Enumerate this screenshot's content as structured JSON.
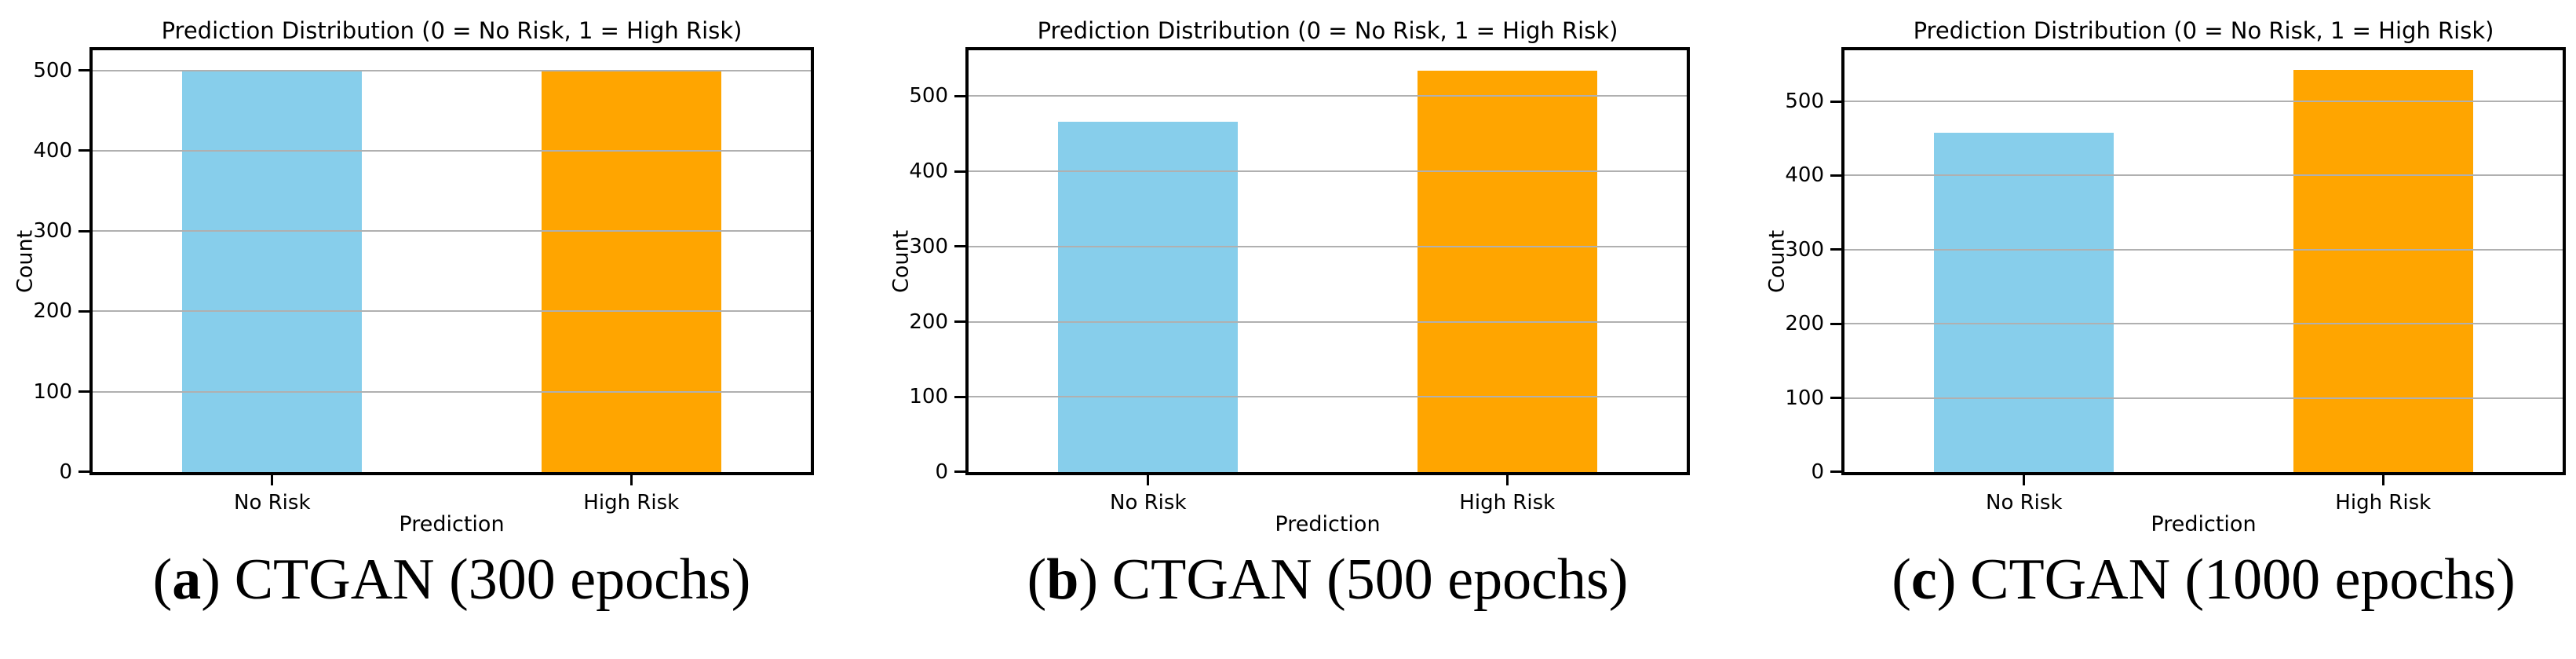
{
  "figure": {
    "background": "#ffffff",
    "text_color": "#000000",
    "grid_color": "#b0b0b0",
    "spine_color": "#000000"
  },
  "chart_data": [
    {
      "type": "bar",
      "title": "Prediction Distribution (0 = No Risk, 1 = High Risk)",
      "xlabel": "Prediction",
      "ylabel": "Count",
      "categories": [
        "No Risk",
        "High Risk"
      ],
      "values": [
        500,
        500
      ],
      "bar_colors": [
        "#87CEEB",
        "#FFA500"
      ],
      "yticks": [
        0,
        100,
        200,
        300,
        400,
        500
      ],
      "ylim": [
        0,
        525
      ],
      "grid": true,
      "legend_position": "none",
      "caption": {
        "paren_open": "(",
        "letter": "a",
        "paren_close": ")",
        "label": "CTGAN (300 epochs)"
      }
    },
    {
      "type": "bar",
      "title": "Prediction Distribution (0 = No Risk, 1 = High Risk)",
      "xlabel": "Prediction",
      "ylabel": "Count",
      "categories": [
        "No Risk",
        "High Risk"
      ],
      "values": [
        466,
        534
      ],
      "bar_colors": [
        "#87CEEB",
        "#FFA500"
      ],
      "yticks": [
        0,
        100,
        200,
        300,
        400,
        500
      ],
      "ylim": [
        0,
        561
      ],
      "grid": true,
      "legend_position": "none",
      "caption": {
        "paren_open": "(",
        "letter": "b",
        "paren_close": ")",
        "label": "CTGAN (500 epochs)"
      }
    },
    {
      "type": "bar",
      "title": "Prediction Distribution (0 = No Risk, 1 = High Risk)",
      "xlabel": "Prediction",
      "ylabel": "Count",
      "categories": [
        "No Risk",
        "High Risk"
      ],
      "values": [
        458,
        542
      ],
      "bar_colors": [
        "#87CEEB",
        "#FFA500"
      ],
      "yticks": [
        0,
        100,
        200,
        300,
        400,
        500
      ],
      "ylim": [
        0,
        569
      ],
      "grid": true,
      "legend_position": "none",
      "caption": {
        "paren_open": "(",
        "letter": "c",
        "paren_close": ")",
        "label": "CTGAN (1000 epochs)"
      }
    }
  ]
}
